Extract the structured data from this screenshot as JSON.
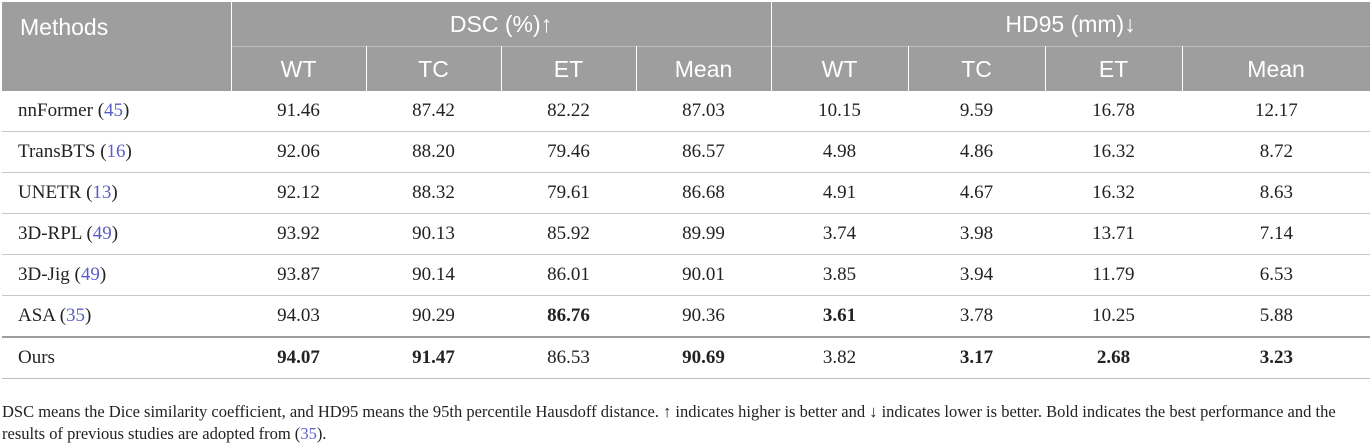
{
  "header": {
    "methods": "Methods",
    "dsc_group": "DSC (%)↑",
    "hd_group": "HD95 (mm)↓",
    "dsc_cols": [
      "WT",
      "TC",
      "ET",
      "Mean"
    ],
    "hd_cols": [
      "WT",
      "TC",
      "ET",
      "Mean"
    ]
  },
  "rows": [
    {
      "name": "nnFormer",
      "ref": "45",
      "dsc": [
        "91.46",
        "87.42",
        "82.22",
        "87.03"
      ],
      "hd": [
        "10.15",
        "9.59",
        "16.78",
        "12.17"
      ]
    },
    {
      "name": "TransBTS",
      "ref": "16",
      "dsc": [
        "92.06",
        "88.20",
        "79.46",
        "86.57"
      ],
      "hd": [
        "4.98",
        "4.86",
        "16.32",
        "8.72"
      ]
    },
    {
      "name": "UNETR",
      "ref": "13",
      "dsc": [
        "92.12",
        "88.32",
        "79.61",
        "86.68"
      ],
      "hd": [
        "4.91",
        "4.67",
        "16.32",
        "8.63"
      ]
    },
    {
      "name": "3D-RPL",
      "ref": "49",
      "dsc": [
        "93.92",
        "90.13",
        "85.92",
        "89.99"
      ],
      "hd": [
        "3.74",
        "3.98",
        "13.71",
        "7.14"
      ]
    },
    {
      "name": "3D-Jig",
      "ref": "49",
      "dsc": [
        "93.87",
        "90.14",
        "86.01",
        "90.01"
      ],
      "hd": [
        "3.85",
        "3.94",
        "11.79",
        "6.53"
      ]
    },
    {
      "name": "ASA",
      "ref": "35",
      "dsc": [
        "94.03",
        "90.29",
        "86.76",
        "90.36"
      ],
      "hd": [
        "3.61",
        "3.78",
        "10.25",
        "5.88"
      ]
    },
    {
      "name": "Ours",
      "ref": "",
      "dsc": [
        "94.07",
        "91.47",
        "86.53",
        "90.69"
      ],
      "hd": [
        "3.82",
        "3.17",
        "2.68",
        "3.23"
      ]
    }
  ],
  "footnote": {
    "text": "DSC means the Dice similarity coefficient, and HD95 means the 95th percentile Hausdoff distance. ↑ indicates higher is better and ↓ indicates lower is better. Bold indicates the best performance and the results of previous studies are adopted from (",
    "ref": "35",
    "end": ")."
  }
}
